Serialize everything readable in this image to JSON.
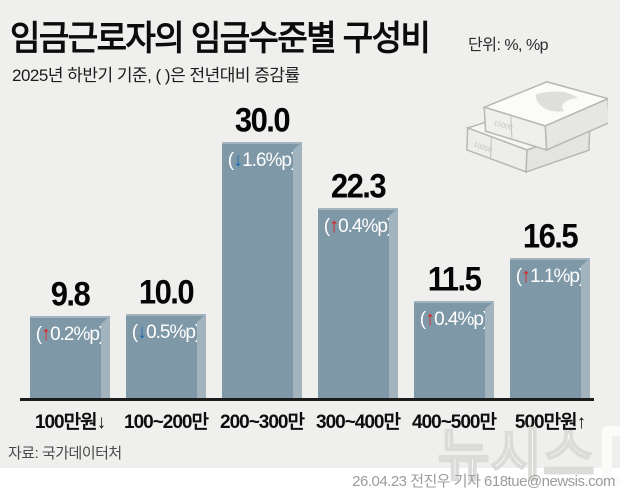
{
  "header": {
    "title": "임금근로자의 임금수준별 구성비",
    "unit": "단위: %, %p",
    "subtitle": "2025년 하반기 기준, ( )은 전년대비 증감률"
  },
  "chart_data": {
    "type": "bar",
    "title": "임금근로자의 임금수준별 구성비",
    "unit": "%, %p",
    "period": "2025년 하반기",
    "categories": [
      "100만원↓",
      "100~200만",
      "200~300만",
      "300~400만",
      "400~500만",
      "500만원↑"
    ],
    "values": [
      9.8,
      10.0,
      30.0,
      22.3,
      11.5,
      16.5
    ],
    "change_pct_point": [
      0.2,
      -0.5,
      -1.6,
      0.4,
      0.4,
      1.1
    ],
    "ylim": [
      0,
      32
    ],
    "grid": false,
    "legend": "none",
    "bars": [
      {
        "value": "9.8",
        "label": "100만원↓",
        "direction": "up",
        "change": {
          "pre": "(",
          "arrow": "↑",
          "post": "0.2%p)"
        }
      },
      {
        "value": "10.0",
        "label": "100~200만",
        "direction": "down",
        "change": {
          "pre": "(",
          "arrow": "↓",
          "post": "0.5%p)"
        }
      },
      {
        "value": "30.0",
        "label": "200~300만",
        "direction": "down",
        "change": {
          "pre": "(",
          "arrow": "↓",
          "post": "1.6%p)"
        }
      },
      {
        "value": "22.3",
        "label": "300~400만",
        "direction": "up",
        "change": {
          "pre": "(",
          "arrow": "↑",
          "post": "0.4%p)"
        }
      },
      {
        "value": "11.5",
        "label": "400~500만",
        "direction": "up",
        "change": {
          "pre": "(",
          "arrow": "↑",
          "post": "0.4%p)"
        }
      },
      {
        "value": "16.5",
        "label": "500만원↑",
        "direction": "up",
        "change": {
          "pre": "(",
          "arrow": "↑",
          "post": "1.1%p)"
        }
      }
    ]
  },
  "footer": {
    "source": "자료: 국가데이터처",
    "credit": "26.04.23 전진우 기자 618tue@newsis.com",
    "watermark": "뉴시스"
  },
  "colors": {
    "background": "#efefed",
    "bar": "#7e98a8",
    "bar_bevel": "#a2b4be",
    "up_arrow": "#e01e1e",
    "down_arrow": "#1a6ab5",
    "axis": "#1b1b1b"
  }
}
